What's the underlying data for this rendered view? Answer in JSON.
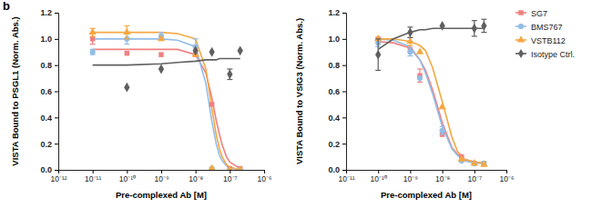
{
  "chart_data": [
    {
      "type": "scatter",
      "title": "b",
      "log": "x",
      "x_label": "Pre-complexed Ab [M]",
      "y_label": "VISTA Bound to PSGL1 (Norm. Abs.)",
      "xlim": [
        1e-12,
        1e-06
      ],
      "xticks": [
        {
          "value": 1e-12,
          "label": "10⁻¹²"
        },
        {
          "value": 1e-11,
          "label": "10⁻¹¹"
        },
        {
          "value": 1e-10,
          "label": "10⁻¹⁰"
        },
        {
          "value": 1e-09,
          "label": "10⁻⁹"
        },
        {
          "value": 1e-08,
          "label": "10⁻⁸"
        },
        {
          "value": 1e-07,
          "label": "10⁻⁷"
        },
        {
          "value": 1e-06,
          "label": "10⁻⁶"
        }
      ],
      "ylim": [
        0,
        1.2
      ],
      "yticks": [
        {
          "value": 0,
          "label": "0.0"
        },
        0.2,
        0.4,
        0.6,
        0.8,
        {
          "value": 1,
          "label": "1.0"
        },
        1.2
      ],
      "series": [
        {
          "type": "line",
          "color": "#f08080",
          "x": [
            1e-11,
            1e-10,
            1e-09,
            3e-09,
            1e-08,
            2e-08,
            3e-08,
            4e-08,
            5e-08,
            6e-08,
            8e-08,
            1e-07,
            2e-07
          ],
          "values": [
            0.92,
            0.92,
            0.92,
            0.92,
            0.88,
            0.74,
            0.55,
            0.38,
            0.27,
            0.19,
            0.1,
            0.06,
            0.01
          ]
        },
        {
          "type": "line",
          "color": "#92bde6",
          "x": [
            1e-11,
            1e-10,
            1e-09,
            3e-09,
            1e-08,
            2e-08,
            3e-08,
            4e-08,
            5e-08,
            6e-08,
            8e-08,
            1e-07,
            2e-07
          ],
          "values": [
            1.0,
            1.0,
            1.0,
            0.99,
            0.94,
            0.66,
            0.37,
            0.2,
            0.11,
            0.07,
            0.03,
            0.015,
            0.0
          ]
        },
        {
          "type": "line",
          "color": "#f5a742",
          "x": [
            1e-11,
            1e-10,
            1e-09,
            3e-09,
            1e-08,
            2e-08,
            3e-08,
            4e-08,
            5e-08,
            6e-08,
            8e-08,
            1e-07,
            2e-07
          ],
          "values": [
            1.05,
            1.05,
            1.05,
            1.04,
            1.0,
            0.77,
            0.47,
            0.27,
            0.16,
            0.1,
            0.04,
            0.02,
            0.0
          ]
        },
        {
          "type": "line",
          "color": "#5f5f5f",
          "x": [
            1e-11,
            1e-10,
            1e-09,
            3e-09,
            1e-08,
            2e-08,
            3e-08,
            4e-08,
            5e-08,
            6e-08,
            8e-08,
            1e-07,
            2e-07
          ],
          "values": [
            0.8,
            0.8,
            0.81,
            0.82,
            0.83,
            0.84,
            0.84,
            0.84,
            0.85,
            0.85,
            0.85,
            0.85,
            0.85
          ]
        },
        {
          "type": "scatter",
          "color": "#f08080",
          "marker": "square",
          "x": [
            1e-11,
            1e-10,
            1e-09,
            1e-08,
            3e-08,
            1e-07,
            2e-07
          ],
          "values": [
            1.0,
            0.89,
            0.88,
            0.88,
            0.5,
            0.01,
            0.01
          ],
          "errors": [
            0.04,
            null,
            null,
            null,
            null,
            null,
            null
          ]
        },
        {
          "type": "scatter",
          "color": "#92bde6",
          "marker": "circle",
          "x": [
            1e-11,
            1e-10,
            1e-09,
            1e-08,
            3e-08,
            1e-07,
            2e-07
          ],
          "values": [
            0.9,
            1.0,
            1.02,
            0.94,
            0.01,
            0.0,
            0.0
          ],
          "errors": [
            0.02,
            0.04,
            0.03,
            0.06,
            null,
            null,
            null
          ]
        },
        {
          "type": "scatter",
          "color": "#f5a742",
          "marker": "triangle",
          "x": [
            1e-11,
            1e-10,
            1e-09,
            1e-08,
            3e-08,
            1e-07,
            2e-07
          ],
          "values": [
            1.05,
            1.05,
            1.0,
            0.88,
            0.01,
            0.0,
            0.0
          ],
          "errors": [
            0.03,
            0.05,
            null,
            null,
            null,
            null,
            null
          ]
        },
        {
          "type": "scatter",
          "color": "#5f5f5f",
          "marker": "diamond",
          "x": [
            1e-11,
            1e-10,
            1e-09,
            1e-08,
            3e-08,
            1e-07,
            2e-07
          ],
          "values": [
            null,
            0.63,
            0.77,
            0.91,
            0.9,
            0.73,
            0.91
          ],
          "errors": [
            null,
            null,
            null,
            null,
            null,
            0.04,
            null
          ]
        }
      ]
    },
    {
      "type": "scatter",
      "log": "x",
      "legend": "right",
      "x_label": "Pre-complexed Ab [M]",
      "y_label": "VISTA Bound to VSIG3 (Norm. Abs.)",
      "xlim": [
        1e-11,
        1e-06
      ],
      "xticks": [
        {
          "value": 1e-11,
          "label": "10⁻¹¹"
        },
        {
          "value": 1e-10,
          "label": "10⁻¹⁰"
        },
        {
          "value": 1e-09,
          "label": "10⁻⁹"
        },
        {
          "value": 1e-08,
          "label": "10⁻⁸"
        },
        {
          "value": 1e-07,
          "label": "10⁻⁷"
        },
        {
          "value": 1e-06,
          "label": "10⁻⁶"
        }
      ],
      "ylim": [
        0,
        1.2
      ],
      "yticks": [
        {
          "value": 0,
          "label": "0.0"
        },
        0.2,
        0.4,
        0.6,
        0.8,
        {
          "value": 1,
          "label": "1.0"
        },
        1.2
      ],
      "series": [
        {
          "type": "line",
          "color": "#f08080",
          "x": [
            1e-10,
            3e-10,
            1e-09,
            2e-09,
            3e-09,
            5e-09,
            1e-08,
            2e-08,
            3e-08,
            5e-08,
            1e-07,
            2e-07
          ],
          "values": [
            0.98,
            0.97,
            0.93,
            0.84,
            0.76,
            0.61,
            0.36,
            0.17,
            0.12,
            0.08,
            0.06,
            0.05
          ]
        },
        {
          "type": "line",
          "color": "#92bde6",
          "x": [
            1e-10,
            3e-10,
            1e-09,
            2e-09,
            3e-09,
            5e-09,
            1e-08,
            2e-08,
            3e-08,
            5e-08,
            1e-07,
            2e-07
          ],
          "values": [
            1.0,
            0.99,
            0.94,
            0.84,
            0.74,
            0.58,
            0.33,
            0.16,
            0.11,
            0.07,
            0.05,
            0.05
          ]
        },
        {
          "type": "line",
          "color": "#f5a742",
          "x": [
            1e-10,
            3e-10,
            1e-09,
            2e-09,
            3e-09,
            5e-09,
            1e-08,
            2e-08,
            3e-08,
            5e-08,
            1e-07,
            2e-07
          ],
          "values": [
            1.0,
            1.0,
            0.98,
            0.95,
            0.91,
            0.78,
            0.52,
            0.25,
            0.14,
            0.08,
            0.06,
            0.05
          ]
        },
        {
          "type": "line",
          "color": "#5f5f5f",
          "x": [
            1e-10,
            3e-10,
            1e-09,
            2e-09,
            3e-09,
            5e-09,
            1e-08,
            2e-08,
            3e-08,
            5e-08,
            1e-07,
            2e-07
          ],
          "values": [
            0.92,
            1.0,
            1.05,
            1.07,
            1.07,
            1.08,
            1.08,
            1.08,
            1.08,
            1.08,
            1.08,
            1.08
          ]
        },
        {
          "type": "scatter",
          "name": "SG7",
          "color": "#f08080",
          "marker": "square",
          "x": [
            1e-10,
            1e-09,
            2e-09,
            1e-08,
            4e-08,
            1e-07,
            2e-07
          ],
          "values": [
            1.0,
            0.92,
            0.72,
            0.27,
            0.1,
            0.05,
            0.05
          ],
          "errors": [
            null,
            null,
            0.05,
            null,
            null,
            null,
            null
          ]
        },
        {
          "type": "scatter",
          "name": "BMS767",
          "color": "#92bde6",
          "marker": "circle",
          "x": [
            1e-10,
            1e-09,
            2e-09,
            1e-08,
            4e-08,
            1e-07,
            2e-07
          ],
          "values": [
            0.97,
            0.9,
            0.7,
            0.3,
            0.07,
            0.05,
            0.05
          ],
          "errors": [
            0.03,
            0.03,
            null,
            0.03,
            null,
            null,
            null
          ]
        },
        {
          "type": "scatter",
          "name": "VSTB112",
          "color": "#f5a742",
          "marker": "triangle",
          "x": [
            1e-10,
            1e-09,
            2e-09,
            1e-08,
            4e-08,
            1e-07,
            2e-07
          ],
          "values": [
            1.0,
            0.98,
            0.9,
            0.48,
            0.08,
            0.05,
            0.04
          ],
          "errors": [
            null,
            0.03,
            null,
            null,
            null,
            null,
            null
          ]
        },
        {
          "type": "scatter",
          "name": "Isotype Ctrl.",
          "color": "#5f5f5f",
          "marker": "diamond",
          "x": [
            1e-10,
            1e-09,
            2e-09,
            1e-08,
            4e-08,
            1e-07,
            2e-07
          ],
          "values": [
            0.88,
            1.05,
            null,
            1.1,
            null,
            1.08,
            1.1
          ],
          "errors": [
            0.12,
            0.04,
            null,
            null,
            null,
            0.06,
            0.05
          ]
        }
      ]
    }
  ]
}
